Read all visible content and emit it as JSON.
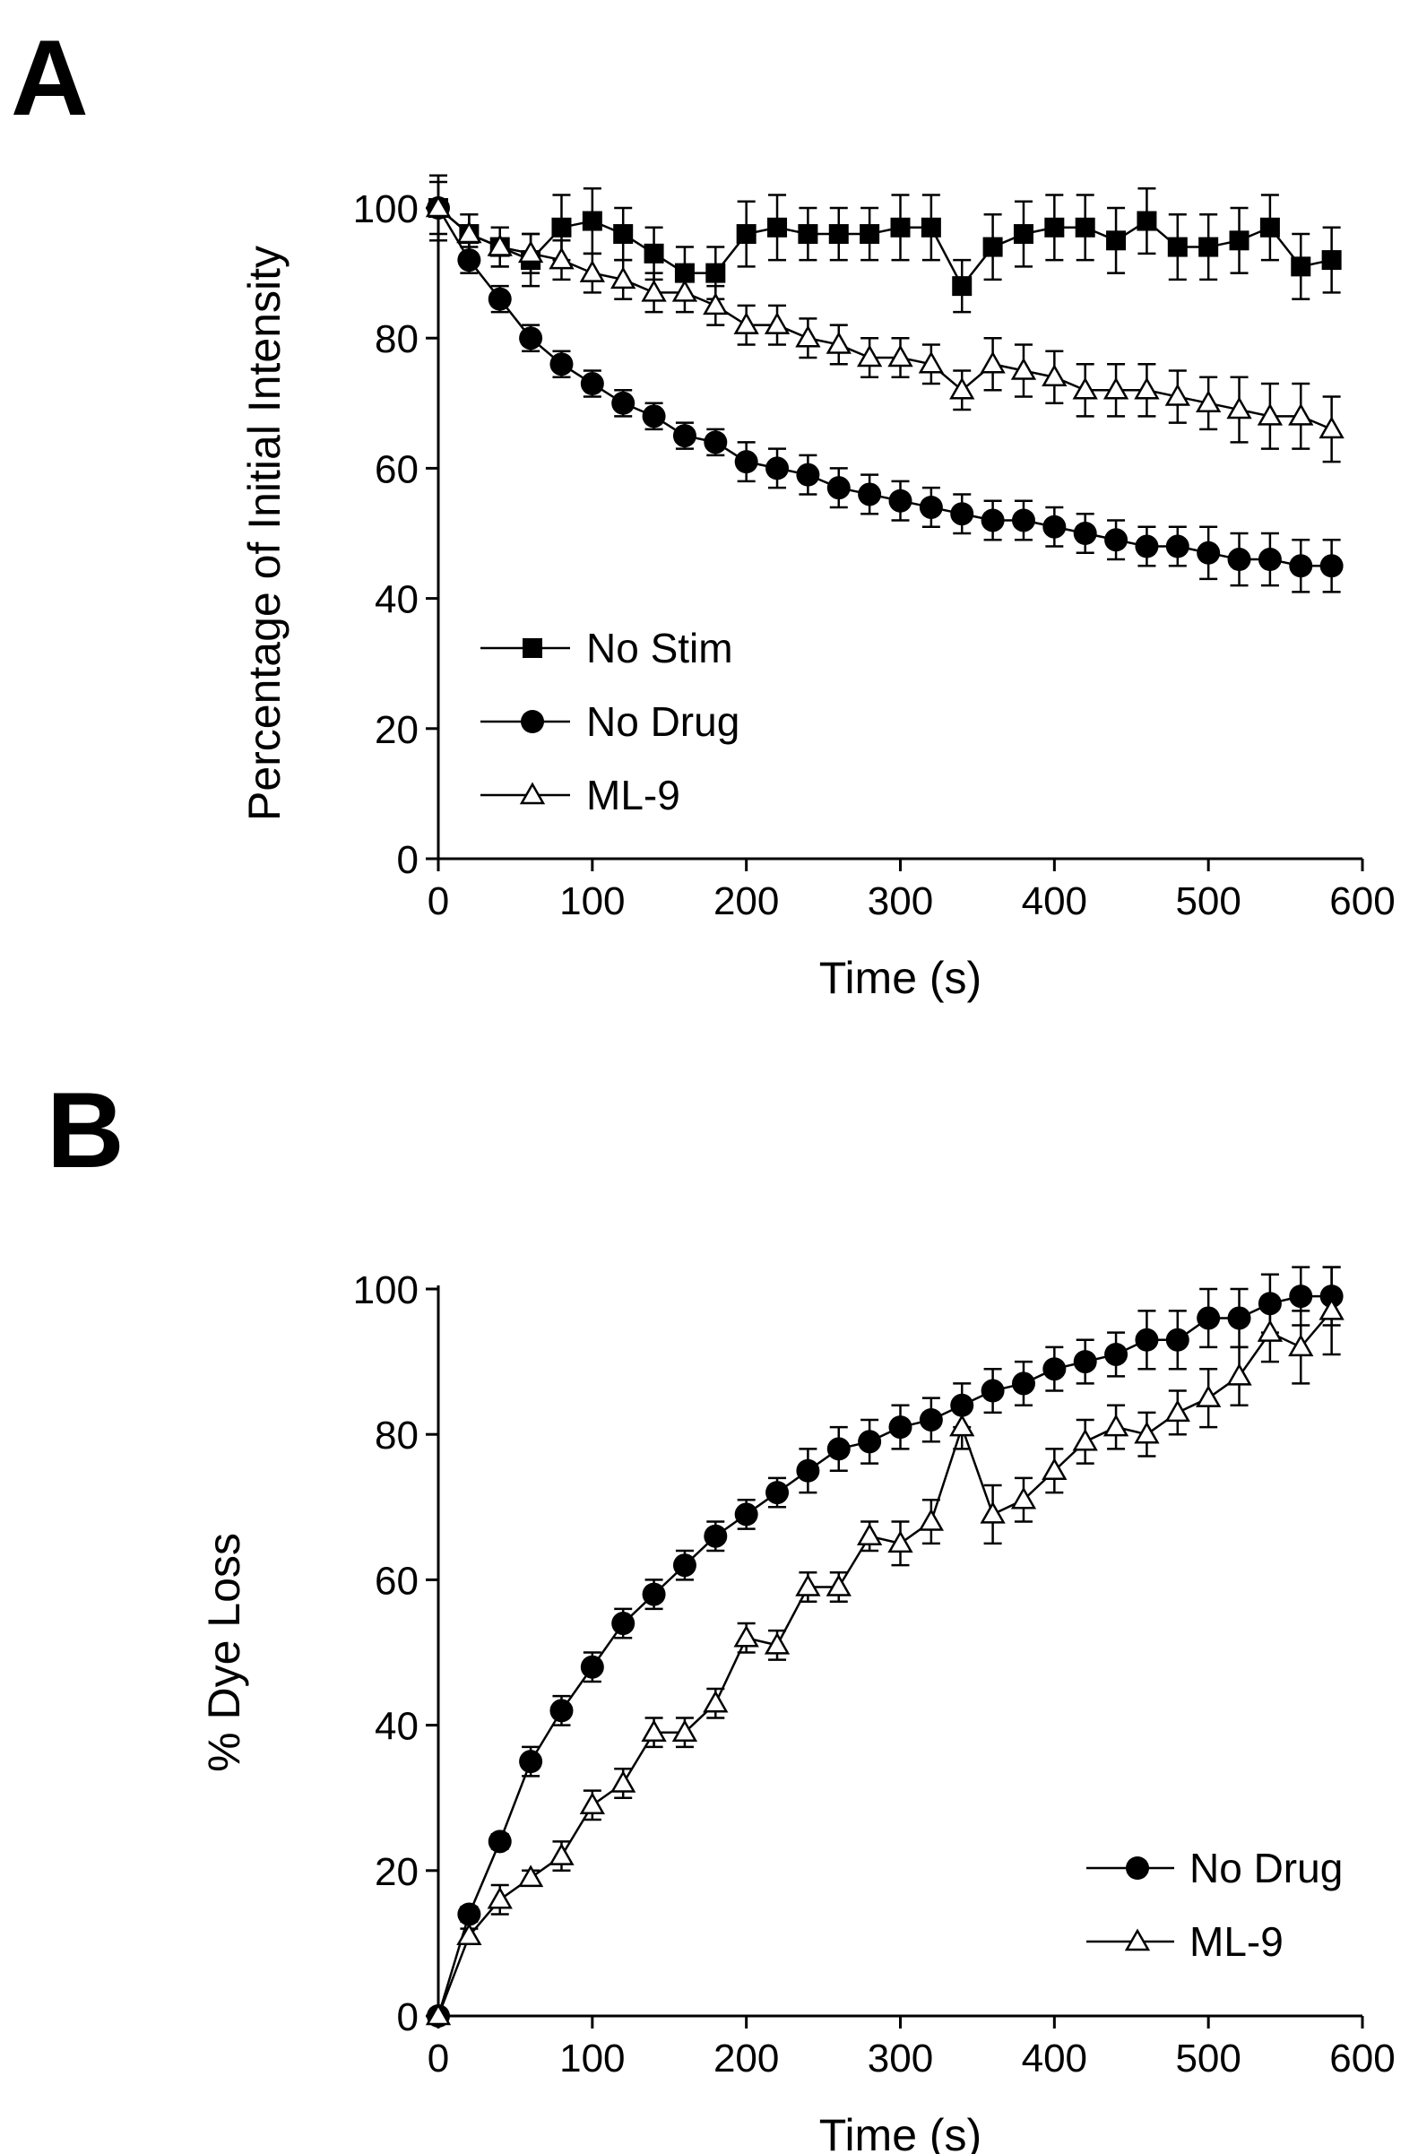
{
  "chart_data": [
    {
      "panel": "A",
      "type": "line",
      "xlabel": "Time (s)",
      "ylabel": "Percentage of Initial Intensity",
      "xlim": [
        0,
        600
      ],
      "ylim": [
        0,
        100
      ],
      "xticks": [
        "0",
        "100",
        "200",
        "300",
        "400",
        "500",
        "600"
      ],
      "yticks": [
        "0",
        "20",
        "40",
        "60",
        "80",
        "100"
      ],
      "grid": false,
      "legend_position": "bottom-left",
      "x": [
        0,
        20,
        40,
        60,
        80,
        100,
        120,
        140,
        160,
        180,
        200,
        220,
        240,
        260,
        280,
        300,
        320,
        340,
        360,
        380,
        400,
        420,
        440,
        460,
        480,
        500,
        520,
        540,
        560,
        580
      ],
      "series": [
        {
          "name": "No Stim",
          "marker": "square-filled",
          "values": [
            100,
            96,
            94,
            92,
            97,
            98,
            96,
            93,
            90,
            90,
            96,
            97,
            96,
            96,
            96,
            97,
            97,
            88,
            94,
            96,
            97,
            97,
            95,
            98,
            94,
            94,
            95,
            97,
            91,
            92
          ],
          "errors": [
            5,
            3,
            3,
            4,
            5,
            5,
            4,
            4,
            4,
            4,
            5,
            5,
            4,
            4,
            4,
            5,
            5,
            4,
            5,
            5,
            5,
            5,
            5,
            5,
            5,
            5,
            5,
            5,
            5,
            5
          ]
        },
        {
          "name": "No Drug",
          "marker": "circle-filled",
          "values": [
            100,
            92,
            86,
            80,
            76,
            73,
            70,
            68,
            65,
            64,
            61,
            60,
            59,
            57,
            56,
            55,
            54,
            53,
            52,
            52,
            51,
            50,
            49,
            48,
            48,
            47,
            46,
            46,
            45,
            45
          ],
          "errors": [
            5,
            2,
            2,
            2,
            2,
            2,
            2,
            2,
            2,
            2,
            3,
            3,
            3,
            3,
            3,
            3,
            3,
            3,
            3,
            3,
            3,
            3,
            3,
            3,
            3,
            4,
            4,
            4,
            4,
            4
          ]
        },
        {
          "name": "ML-9",
          "marker": "triangle-open",
          "values": [
            100,
            96,
            94,
            93,
            92,
            90,
            89,
            87,
            87,
            85,
            82,
            82,
            80,
            79,
            77,
            77,
            76,
            72,
            76,
            75,
            74,
            72,
            72,
            72,
            71,
            70,
            69,
            68,
            68,
            66
          ],
          "errors": [
            4,
            3,
            3,
            3,
            3,
            3,
            3,
            3,
            3,
            3,
            3,
            3,
            3,
            3,
            3,
            3,
            3,
            3,
            4,
            4,
            4,
            4,
            4,
            4,
            4,
            4,
            5,
            5,
            5,
            5
          ]
        }
      ]
    },
    {
      "panel": "B",
      "type": "line",
      "xlabel": "Time (s)",
      "ylabel": "% Dye Loss",
      "xlim": [
        0,
        600
      ],
      "ylim": [
        0,
        100
      ],
      "xticks": [
        "0",
        "100",
        "200",
        "300",
        "400",
        "500",
        "600"
      ],
      "yticks": [
        "0",
        "20",
        "40",
        "60",
        "80",
        "100"
      ],
      "grid": false,
      "legend_position": "bottom-right",
      "x": [
        0,
        20,
        40,
        60,
        80,
        100,
        120,
        140,
        160,
        180,
        200,
        220,
        240,
        260,
        280,
        300,
        320,
        340,
        360,
        380,
        400,
        420,
        440,
        460,
        480,
        500,
        520,
        540,
        560,
        580
      ],
      "series": [
        {
          "name": "No Drug",
          "marker": "circle-filled",
          "values": [
            0,
            14,
            24,
            35,
            42,
            48,
            54,
            58,
            62,
            66,
            69,
            72,
            75,
            78,
            79,
            81,
            82,
            84,
            86,
            87,
            89,
            90,
            91,
            93,
            93,
            96,
            96,
            98,
            99,
            99
          ],
          "errors": [
            0,
            1,
            1,
            2,
            2,
            2,
            2,
            2,
            2,
            2,
            2,
            2,
            3,
            3,
            3,
            3,
            3,
            3,
            3,
            3,
            3,
            3,
            3,
            4,
            4,
            4,
            4,
            4,
            4,
            4
          ]
        },
        {
          "name": "ML-9",
          "marker": "triangle-open",
          "values": [
            0,
            11,
            16,
            19,
            22,
            29,
            32,
            39,
            39,
            43,
            52,
            51,
            59,
            59,
            66,
            65,
            68,
            81,
            69,
            71,
            75,
            79,
            81,
            80,
            83,
            85,
            88,
            94,
            92,
            97
          ],
          "errors": [
            0,
            1,
            2,
            1,
            2,
            2,
            2,
            2,
            2,
            2,
            2,
            2,
            2,
            2,
            2,
            3,
            3,
            3,
            4,
            3,
            3,
            3,
            3,
            3,
            3,
            4,
            4,
            4,
            5,
            6
          ]
        }
      ]
    }
  ]
}
